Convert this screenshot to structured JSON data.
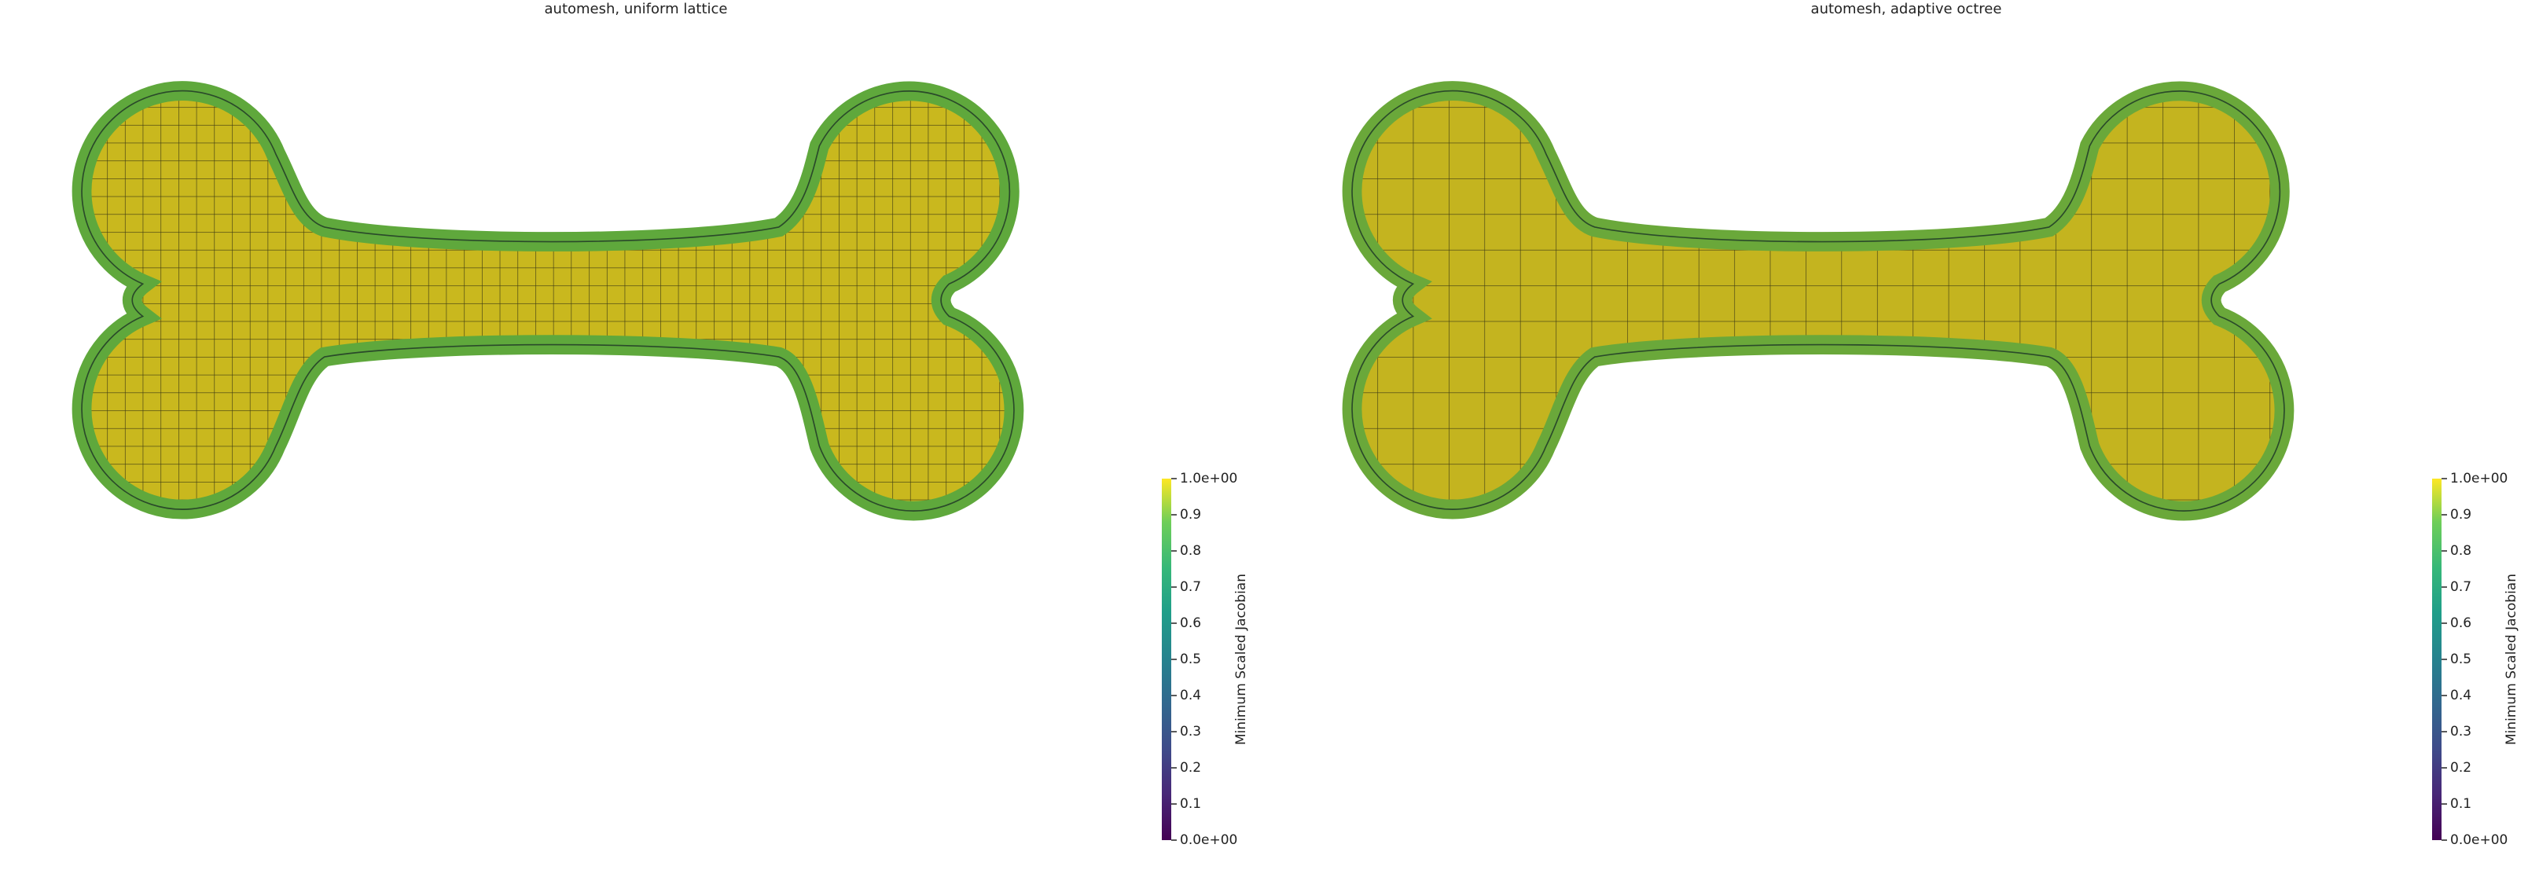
{
  "panels": [
    {
      "title": "automesh, uniform lattice",
      "colorbar": {
        "title": "Minimum Scaled Jacobian",
        "ticks": [
          {
            "value": 0,
            "label": "0.0e+00"
          },
          0.1,
          0.2,
          0.3,
          0.4,
          0.5,
          0.6,
          0.7,
          0.8,
          0.9,
          {
            "value": 1,
            "label": "1.0e+00"
          }
        ]
      }
    },
    {
      "title": "automesh, adaptive octree",
      "colorbar": {
        "title": "Minimum Scaled Jacobian",
        "ticks": [
          {
            "value": 0,
            "label": "0.0e+00"
          },
          0.1,
          0.2,
          0.3,
          0.4,
          0.5,
          0.6,
          0.7,
          0.8,
          0.9,
          {
            "value": 1,
            "label": "1.0e+00"
          }
        ]
      }
    }
  ]
}
